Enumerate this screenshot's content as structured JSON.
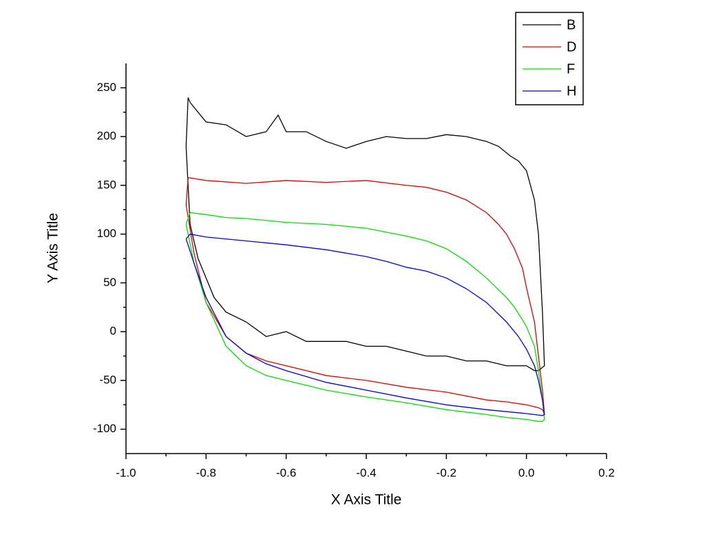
{
  "chart_data": {
    "type": "line",
    "x_label": "X Axis Title",
    "y_label": "Y Axis Title",
    "xlim": [
      -1.0,
      0.2
    ],
    "ylim": [
      -125,
      275
    ],
    "xticks": [
      {
        "value": -1.0,
        "label": "-1.0"
      },
      {
        "value": -0.8,
        "label": "-0.8"
      },
      {
        "value": -0.6,
        "label": "-0.6"
      },
      {
        "value": -0.4,
        "label": "-0.4"
      },
      {
        "value": -0.2,
        "label": "-0.2"
      },
      {
        "value": 0.0,
        "label": "0.0"
      },
      {
        "value": 0.2,
        "label": "0.2"
      }
    ],
    "yticks": [
      -100,
      -50,
      0,
      50,
      100,
      150,
      200,
      250
    ],
    "legend": "top-right",
    "series": [
      {
        "name": "B",
        "color": "#000000",
        "x": [
          -0.85,
          -0.845,
          -0.84,
          -0.82,
          -0.8,
          -0.75,
          -0.7,
          -0.65,
          -0.62,
          -0.6,
          -0.55,
          -0.5,
          -0.45,
          -0.4,
          -0.35,
          -0.3,
          -0.25,
          -0.2,
          -0.15,
          -0.1,
          -0.07,
          -0.04,
          -0.02,
          0.0,
          0.01,
          0.02,
          0.03,
          0.04,
          0.045,
          0.045,
          0.03,
          0.02,
          0.0,
          -0.05,
          -0.1,
          -0.15,
          -0.2,
          -0.25,
          -0.3,
          -0.35,
          -0.4,
          -0.45,
          -0.5,
          -0.55,
          -0.6,
          -0.65,
          -0.7,
          -0.75,
          -0.78,
          -0.8,
          -0.82,
          -0.84,
          -0.85
        ],
        "values": [
          190,
          240,
          235,
          225,
          215,
          212,
          200,
          205,
          222,
          205,
          205,
          195,
          188,
          195,
          200,
          198,
          198,
          202,
          200,
          195,
          190,
          180,
          175,
          165,
          150,
          135,
          100,
          20,
          -35,
          -35,
          -40,
          -40,
          -35,
          -35,
          -30,
          -30,
          -25,
          -25,
          -20,
          -15,
          -15,
          -10,
          -10,
          -10,
          0,
          -5,
          10,
          20,
          35,
          55,
          75,
          110,
          190
        ]
      },
      {
        "name": "D",
        "color": "#e00000",
        "x": [
          -0.85,
          -0.845,
          -0.8,
          -0.7,
          -0.6,
          -0.5,
          -0.4,
          -0.3,
          -0.25,
          -0.2,
          -0.15,
          -0.1,
          -0.07,
          -0.05,
          -0.03,
          -0.01,
          0.0,
          0.02,
          0.03,
          0.04,
          0.045,
          0.04,
          0.03,
          0.0,
          -0.05,
          -0.1,
          -0.2,
          -0.3,
          -0.4,
          -0.5,
          -0.6,
          -0.65,
          -0.7,
          -0.75,
          -0.8,
          -0.83,
          -0.85
        ],
        "values": [
          130,
          158,
          155,
          152,
          155,
          153,
          155,
          150,
          148,
          143,
          135,
          122,
          110,
          100,
          85,
          65,
          45,
          10,
          -25,
          -60,
          -85,
          -80,
          -78,
          -75,
          -72,
          -70,
          -62,
          -57,
          -50,
          -45,
          -35,
          -30,
          -22,
          -5,
          30,
          80,
          130
        ]
      },
      {
        "name": "F",
        "color": "#00e000",
        "x": [
          -0.85,
          -0.84,
          -0.8,
          -0.75,
          -0.7,
          -0.6,
          -0.5,
          -0.4,
          -0.3,
          -0.25,
          -0.2,
          -0.15,
          -0.1,
          -0.07,
          -0.05,
          -0.03,
          -0.01,
          0.0,
          0.02,
          0.03,
          0.04,
          0.045,
          0.04,
          0.03,
          0.0,
          -0.05,
          -0.1,
          -0.2,
          -0.3,
          -0.4,
          -0.5,
          -0.6,
          -0.65,
          -0.7,
          -0.75,
          -0.8,
          -0.83,
          -0.85
        ],
        "values": [
          110,
          122,
          120,
          117,
          116,
          112,
          110,
          106,
          98,
          93,
          85,
          72,
          55,
          43,
          35,
          25,
          12,
          5,
          -15,
          -40,
          -70,
          -90,
          -92,
          -92,
          -90,
          -88,
          -85,
          -80,
          -73,
          -67,
          -60,
          -50,
          -45,
          -35,
          -15,
          30,
          70,
          110
        ]
      },
      {
        "name": "H",
        "color": "#0000e0",
        "x": [
          -0.85,
          -0.84,
          -0.8,
          -0.7,
          -0.6,
          -0.5,
          -0.4,
          -0.35,
          -0.3,
          -0.25,
          -0.2,
          -0.15,
          -0.1,
          -0.05,
          -0.02,
          0.0,
          0.02,
          0.03,
          0.04,
          0.045,
          0.04,
          0.02,
          0.0,
          -0.1,
          -0.2,
          -0.3,
          -0.4,
          -0.5,
          -0.6,
          -0.65,
          -0.7,
          -0.75,
          -0.8,
          -0.83,
          -0.85
        ],
        "values": [
          95,
          100,
          97,
          93,
          89,
          84,
          77,
          72,
          66,
          62,
          55,
          44,
          30,
          10,
          -5,
          -18,
          -35,
          -50,
          -70,
          -85,
          -86,
          -85,
          -84,
          -80,
          -75,
          -68,
          -60,
          -52,
          -40,
          -33,
          -22,
          -5,
          35,
          70,
          95
        ]
      }
    ]
  }
}
